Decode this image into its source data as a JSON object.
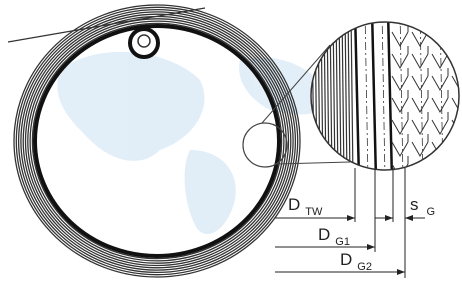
{
  "labels": [
    {
      "symbol": "D",
      "subscript": "TW"
    },
    {
      "symbol": "D",
      "subscript": "G1"
    },
    {
      "symbol": "D",
      "subscript": "G2"
    },
    {
      "symbol": "s",
      "subscript": "G"
    }
  ]
}
